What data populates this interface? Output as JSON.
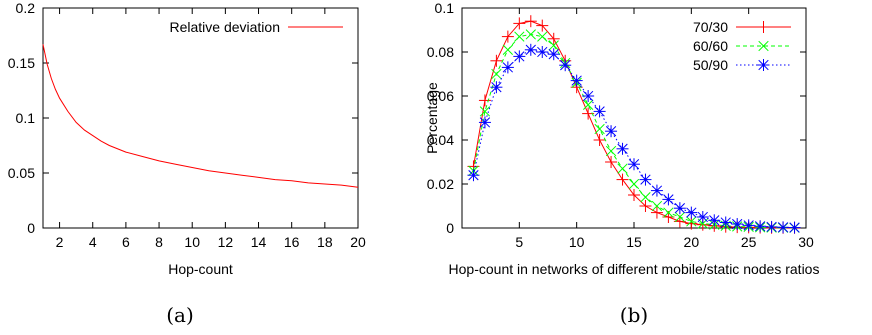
{
  "chart_data": [
    {
      "type": "line",
      "caption": "(a)",
      "xlabel": "Hop-count",
      "ylabel": "",
      "xlim": [
        1,
        20
      ],
      "ylim": [
        0,
        0.2
      ],
      "xticks": [
        2,
        4,
        6,
        8,
        10,
        12,
        14,
        16,
        18,
        20
      ],
      "yticks": [
        0,
        0.05,
        0.1,
        0.15,
        0.2
      ],
      "grid": false,
      "legend": "top-right",
      "series": [
        {
          "name": "Relative deviation",
          "color": "#ff0000",
          "x": [
            1,
            1.25,
            1.5,
            1.75,
            2,
            2.5,
            3,
            3.5,
            4,
            4.5,
            5,
            6,
            7,
            8,
            9,
            10,
            11,
            12,
            13,
            14,
            15,
            16,
            17,
            18,
            19,
            20
          ],
          "y": [
            0.167,
            0.149,
            0.136,
            0.126,
            0.118,
            0.106,
            0.096,
            0.089,
            0.084,
            0.079,
            0.075,
            0.069,
            0.065,
            0.061,
            0.058,
            0.055,
            0.052,
            0.05,
            0.048,
            0.046,
            0.044,
            0.043,
            0.041,
            0.04,
            0.039,
            0.037
          ]
        }
      ]
    },
    {
      "type": "line",
      "caption": "(b)",
      "xlabel": "Hop-count in networks of different mobile/static nodes ratios",
      "ylabel": "Percentage",
      "xlim": [
        0,
        30
      ],
      "ylim": [
        0,
        0.1
      ],
      "xticks": [
        5,
        10,
        15,
        20,
        25,
        30
      ],
      "yticks": [
        0,
        0.02,
        0.04,
        0.06,
        0.08,
        0.1
      ],
      "grid": false,
      "legend": "top-right",
      "series": [
        {
          "name": "70/30",
          "color": "#ff0000",
          "line_style": "solid",
          "marker": "plus",
          "x": [
            1,
            2,
            3,
            4,
            5,
            6,
            7,
            8,
            9,
            10,
            11,
            12,
            13,
            14,
            15,
            16,
            17,
            18,
            19,
            20,
            21,
            22,
            23,
            24,
            25,
            26,
            27,
            28,
            29
          ],
          "y": [
            0.028,
            0.058,
            0.076,
            0.087,
            0.093,
            0.094,
            0.092,
            0.086,
            0.076,
            0.064,
            0.052,
            0.04,
            0.03,
            0.022,
            0.015,
            0.01,
            0.007,
            0.005,
            0.003,
            0.002,
            0.0015,
            0.001,
            0.0006,
            0.0004,
            0.0003,
            0.0002,
            0.0001,
            0.0001,
            0.0001
          ]
        },
        {
          "name": "60/60",
          "color": "#00ff00",
          "line_style": "dashed",
          "marker": "cross",
          "x": [
            1,
            2,
            3,
            4,
            5,
            6,
            7,
            8,
            9,
            10,
            11,
            12,
            13,
            14,
            15,
            16,
            17,
            18,
            19,
            20,
            21,
            22,
            23,
            24,
            25,
            26,
            27,
            28,
            29
          ],
          "y": [
            0.026,
            0.053,
            0.07,
            0.081,
            0.087,
            0.088,
            0.087,
            0.083,
            0.075,
            0.066,
            0.056,
            0.045,
            0.035,
            0.027,
            0.02,
            0.014,
            0.01,
            0.007,
            0.005,
            0.003,
            0.002,
            0.0015,
            0.001,
            0.0007,
            0.0005,
            0.0003,
            0.0002,
            0.0001,
            0.0001
          ]
        },
        {
          "name": "50/90",
          "color": "#0000ff",
          "line_style": "dotted",
          "marker": "star",
          "x": [
            1,
            2,
            3,
            4,
            5,
            6,
            7,
            8,
            9,
            10,
            11,
            12,
            13,
            14,
            15,
            16,
            17,
            18,
            19,
            20,
            21,
            22,
            23,
            24,
            25,
            26,
            27,
            28,
            29
          ],
          "y": [
            0.024,
            0.048,
            0.064,
            0.073,
            0.078,
            0.081,
            0.08,
            0.079,
            0.074,
            0.067,
            0.06,
            0.053,
            0.044,
            0.036,
            0.029,
            0.022,
            0.017,
            0.013,
            0.009,
            0.007,
            0.005,
            0.0035,
            0.0025,
            0.0018,
            0.0012,
            0.0008,
            0.0005,
            0.0003,
            0.0002
          ]
        }
      ]
    }
  ]
}
